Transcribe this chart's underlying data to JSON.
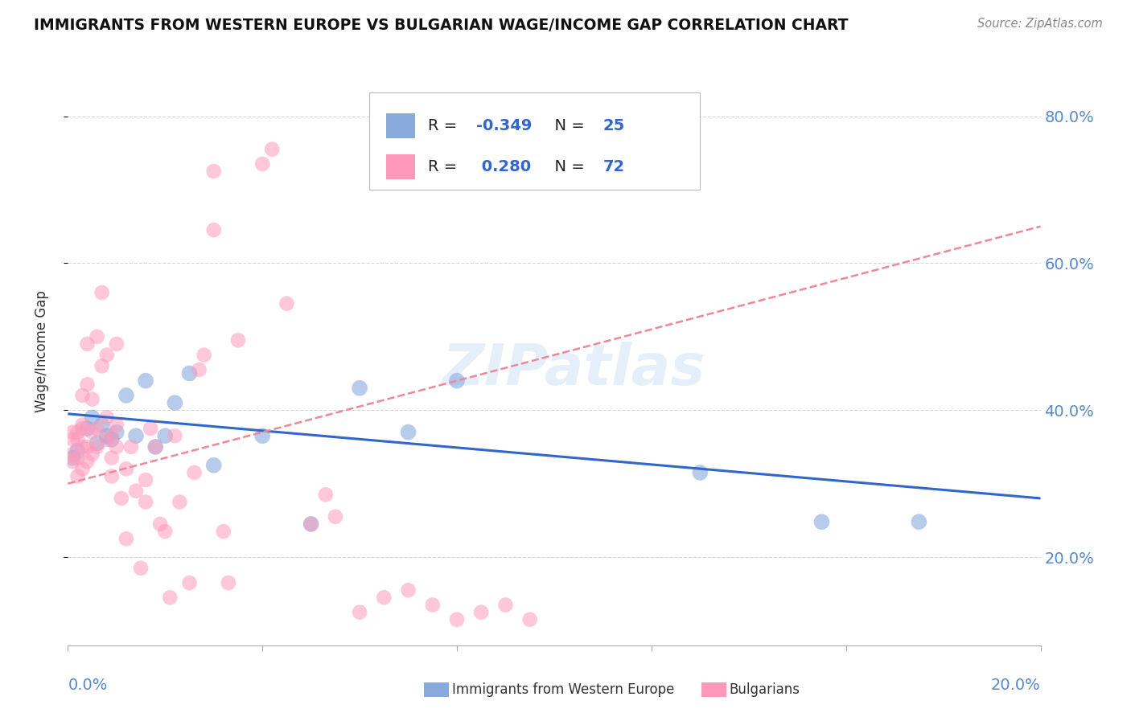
{
  "title": "IMMIGRANTS FROM WESTERN EUROPE VS BULGARIAN WAGE/INCOME GAP CORRELATION CHART",
  "source": "Source: ZipAtlas.com",
  "ylabel": "Wage/Income Gap",
  "yticks": [
    0.2,
    0.4,
    0.6,
    0.8
  ],
  "ytick_labels": [
    "20.0%",
    "40.0%",
    "60.0%",
    "80.0%"
  ],
  "xlim": [
    0.0,
    0.2
  ],
  "ylim": [
    0.08,
    0.88
  ],
  "blue_color": "#88AADD",
  "pink_color": "#FF99BB",
  "blue_line_color": "#3366CC",
  "pink_line_color": "#EE8899",
  "watermark": "ZIPatlas",
  "blue_dots_x": [
    0.001,
    0.002,
    0.004,
    0.005,
    0.006,
    0.007,
    0.008,
    0.009,
    0.01,
    0.012,
    0.014,
    0.016,
    0.018,
    0.02,
    0.022,
    0.025,
    0.03,
    0.04,
    0.05,
    0.06,
    0.07,
    0.08,
    0.13,
    0.155,
    0.175
  ],
  "blue_dots_y": [
    0.335,
    0.345,
    0.375,
    0.39,
    0.355,
    0.38,
    0.365,
    0.36,
    0.37,
    0.42,
    0.365,
    0.44,
    0.35,
    0.365,
    0.41,
    0.45,
    0.325,
    0.365,
    0.245,
    0.43,
    0.37,
    0.44,
    0.315,
    0.248,
    0.248
  ],
  "pink_dots_x": [
    0.001,
    0.001,
    0.001,
    0.001,
    0.002,
    0.002,
    0.002,
    0.002,
    0.003,
    0.003,
    0.003,
    0.003,
    0.003,
    0.004,
    0.004,
    0.004,
    0.004,
    0.005,
    0.005,
    0.005,
    0.006,
    0.006,
    0.006,
    0.007,
    0.007,
    0.008,
    0.008,
    0.008,
    0.009,
    0.009,
    0.009,
    0.01,
    0.01,
    0.01,
    0.011,
    0.012,
    0.012,
    0.013,
    0.014,
    0.015,
    0.016,
    0.016,
    0.017,
    0.018,
    0.019,
    0.02,
    0.021,
    0.022,
    0.023,
    0.025,
    0.026,
    0.027,
    0.028,
    0.03,
    0.03,
    0.032,
    0.033,
    0.035,
    0.04,
    0.042,
    0.045,
    0.05,
    0.053,
    0.055,
    0.06,
    0.065,
    0.07,
    0.075,
    0.08,
    0.085,
    0.09,
    0.095
  ],
  "pink_dots_y": [
    0.33,
    0.34,
    0.36,
    0.37,
    0.31,
    0.335,
    0.36,
    0.37,
    0.32,
    0.35,
    0.375,
    0.38,
    0.42,
    0.33,
    0.35,
    0.435,
    0.49,
    0.34,
    0.37,
    0.415,
    0.35,
    0.375,
    0.5,
    0.46,
    0.56,
    0.36,
    0.39,
    0.475,
    0.31,
    0.335,
    0.365,
    0.35,
    0.38,
    0.49,
    0.28,
    0.225,
    0.32,
    0.35,
    0.29,
    0.185,
    0.275,
    0.305,
    0.375,
    0.35,
    0.245,
    0.235,
    0.145,
    0.365,
    0.275,
    0.165,
    0.315,
    0.455,
    0.475,
    0.645,
    0.725,
    0.235,
    0.165,
    0.495,
    0.735,
    0.755,
    0.545,
    0.245,
    0.285,
    0.255,
    0.125,
    0.145,
    0.155,
    0.135,
    0.115,
    0.125,
    0.135,
    0.115
  ]
}
